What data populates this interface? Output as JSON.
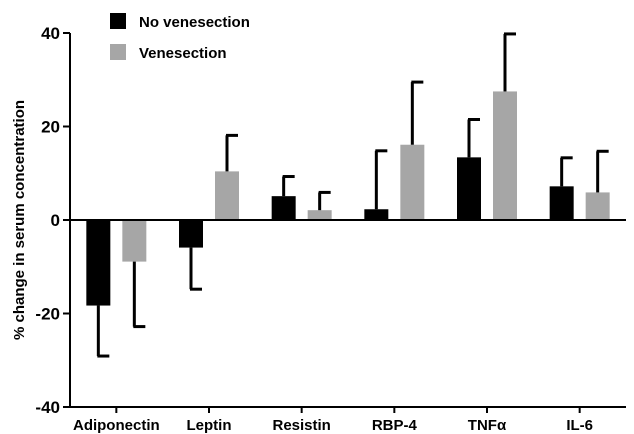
{
  "chart_data": {
    "type": "bar",
    "categories": [
      "Adiponectin",
      "Leptin",
      "Resistin",
      "RBP-4",
      "TNFα",
      "IL-6"
    ],
    "series": [
      {
        "name": "No venesection",
        "color": "#000000",
        "values": [
          -18.3,
          -5.9,
          5.1,
          2.3,
          13.4,
          7.2
        ],
        "error": [
          10.8,
          8.9,
          4.2,
          12.5,
          8.1,
          6.1
        ]
      },
      {
        "name": "Venesection",
        "color": "#a6a6a6",
        "values": [
          -8.9,
          10.4,
          2.1,
          16.1,
          27.5,
          5.9
        ],
        "error": [
          13.9,
          7.7,
          3.8,
          13.4,
          12.3,
          8.8
        ]
      }
    ],
    "ylabel": "% change in serum concentration",
    "xlabel": "",
    "ylim": [
      -40,
      40
    ],
    "yticks": [
      -40,
      -20,
      0,
      20,
      40
    ],
    "legend_position": "top-left",
    "grid": false
  }
}
